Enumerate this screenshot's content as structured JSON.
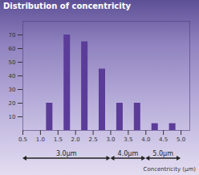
{
  "chart_data": {
    "type": "bar",
    "title": "Distribution of concentricity",
    "x_label": "Concentricity (μm)",
    "x": [
      1.25,
      1.75,
      2.25,
      2.75,
      3.25,
      3.75,
      4.25,
      4.75
    ],
    "values": [
      20,
      70,
      65,
      45,
      20,
      20,
      5,
      5
    ],
    "color": "#5b3c98",
    "xlim": [
      0.5,
      5.25
    ],
    "xticks": [
      0.5,
      {
        "value": 1,
        "label": "1.0"
      },
      1.5,
      {
        "value": 2,
        "label": "2.0"
      },
      2.5,
      {
        "value": 3,
        "label": "3.0"
      },
      3.5,
      {
        "value": 4,
        "label": "4.0"
      },
      4.5,
      {
        "value": 5,
        "label": "5.0"
      }
    ],
    "ylim": [
      0,
      80
    ],
    "yticks": [
      10,
      20,
      30,
      40,
      50,
      60,
      70
    ],
    "grid": false,
    "annotations": [
      {
        "text": "3.0μm",
        "x": [
          0.5,
          3.0
        ]
      },
      {
        "text": "4.0μm",
        "x": [
          3.0,
          4.0
        ]
      },
      {
        "text": "5.0μm",
        "x": [
          4.0,
          5.0
        ]
      }
    ]
  }
}
